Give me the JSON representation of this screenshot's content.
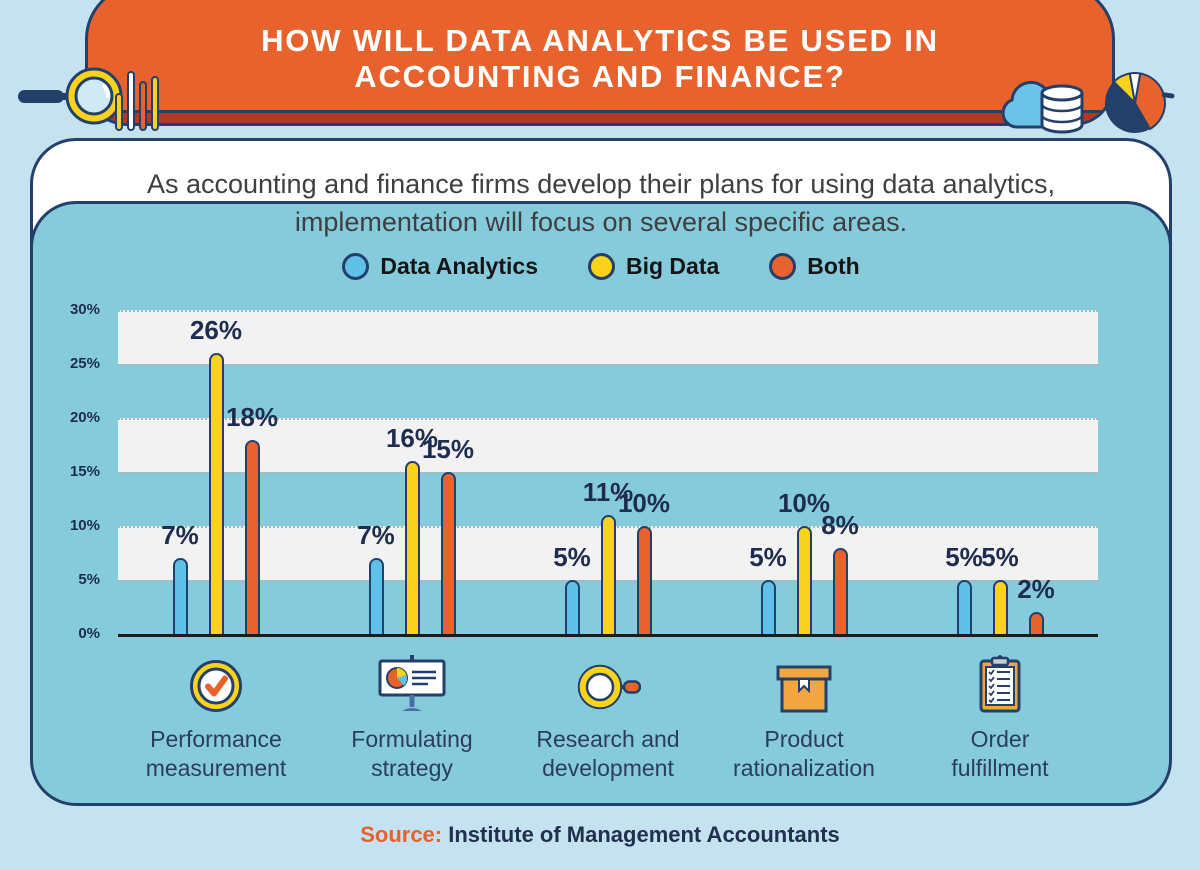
{
  "header": {
    "title_line1": "HOW WILL DATA ANALYTICS BE USED IN",
    "title_line2": "ACCOUNTING AND FINANCE?"
  },
  "intro": {
    "line1": "As accounting and finance firms develop their plans for using data analytics,",
    "line2": "implementation will focus on several specific areas."
  },
  "footer": {
    "source_label": "Source:",
    "source_text": "Institute of Management Accountants"
  },
  "colors": {
    "background": "#C5E2F0",
    "header_orange": "#E8622D",
    "header_stripe_maroon": "#B03A25",
    "navy_outline": "#23406B",
    "value_text_navy": "#1E2C4F",
    "subtitle_gray": "#3F3F3F",
    "band_gray": "#F2F2F2",
    "card_shadow_teal": "#85CBDC",
    "data_analytics_blue": "#5FC1E8",
    "big_data_yellow": "#F8D21B",
    "both_orange": "#E8622D"
  },
  "chart_data": {
    "type": "bar",
    "title": "How will data analytics be used in accounting and finance?",
    "subtitle": "As accounting and finance firms develop their plans for using data analytics, implementation will focus on several specific areas.",
    "categories": [
      {
        "label": "Performance measurement",
        "icon": "check-badge-icon"
      },
      {
        "label": "Formulating strategy",
        "icon": "presentation-chart-icon"
      },
      {
        "label": "Research and development",
        "icon": "magnifier-icon"
      },
      {
        "label": "Product rationalization",
        "icon": "package-box-icon"
      },
      {
        "label": "Order fulfillment",
        "icon": "clipboard-checklist-icon"
      }
    ],
    "series": [
      {
        "name": "Data Analytics",
        "color": "#5FC1E8",
        "values": [
          7,
          7,
          5,
          5,
          5
        ]
      },
      {
        "name": "Big Data",
        "color": "#F8D21B",
        "values": [
          26,
          16,
          11,
          10,
          5
        ]
      },
      {
        "name": "Both",
        "color": "#E8622D",
        "values": [
          18,
          15,
          10,
          8,
          2
        ]
      }
    ],
    "y_axis": {
      "min": 0,
      "max": 30,
      "step": 5,
      "tick_labels_top_to_bottom": [
        "30%",
        "25%",
        "20%",
        "15%",
        "10%",
        "5%",
        "0%"
      ]
    },
    "value_label_suffix": "%",
    "legend_position": "top",
    "grid": "horizontal-dotted",
    "xlabel": "",
    "ylabel": ""
  }
}
